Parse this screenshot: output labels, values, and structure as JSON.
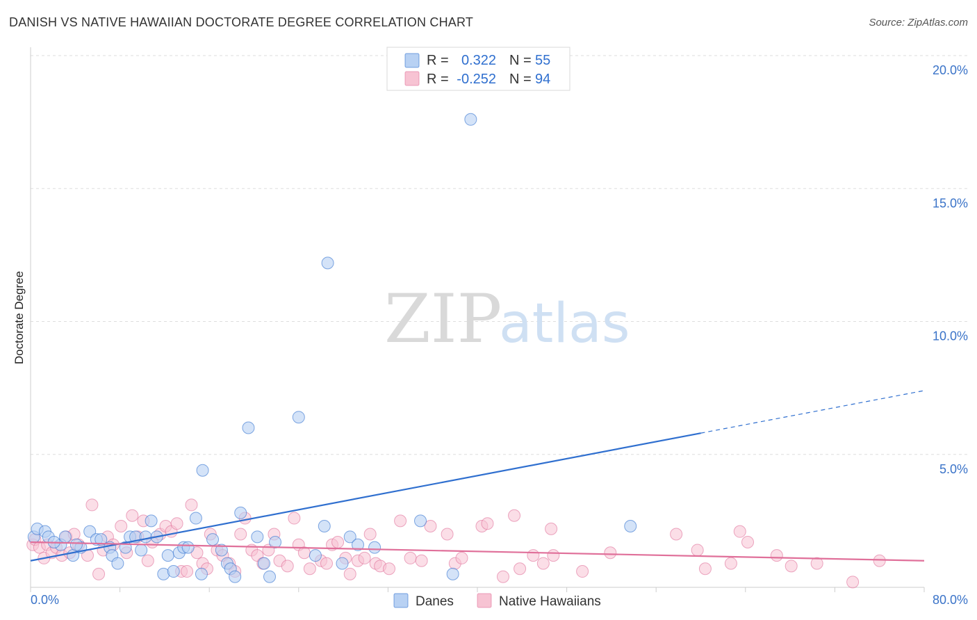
{
  "title": "DANISH VS NATIVE HAWAIIAN DOCTORATE DEGREE CORRELATION CHART",
  "source": "Source: ZipAtlas.com",
  "watermark": {
    "zip": "ZIP",
    "atlas": "atlas"
  },
  "colors": {
    "danes": "#2f6fcf",
    "danes_fill": "#b8d1f3",
    "hawaiians": "#e0709a",
    "hawaiians_fill": "#f7c3d3",
    "axis_text": "#3a73c8",
    "grid": "#dddddd"
  },
  "legend_top": {
    "danes": {
      "r_label": "R =",
      "r_value": "0.322",
      "n_label": "N =",
      "n_value": "55"
    },
    "hawaiians": {
      "r_label": "R =",
      "r_value": "-0.252",
      "n_label": "N =",
      "n_value": "94"
    }
  },
  "legend_bottom": {
    "danes": "Danes",
    "hawaiians": "Native Hawaiians"
  },
  "chart_data": {
    "type": "scatter",
    "title": "DANISH VS NATIVE HAWAIIAN DOCTORATE DEGREE CORRELATION CHART",
    "xlabel": "",
    "ylabel": "Doctorate Degree",
    "xlim": [
      0,
      80
    ],
    "ylim": [
      0,
      20.5
    ],
    "x_ticks": [
      "0.0%",
      "80.0%"
    ],
    "y_ticks": [
      {
        "value": 5,
        "label": "5.0%"
      },
      {
        "value": 10,
        "label": "10.0%"
      },
      {
        "value": 15,
        "label": "15.0%"
      },
      {
        "value": 20,
        "label": "20.0%"
      }
    ],
    "grid": true,
    "legend_position": "top-center",
    "series": [
      {
        "name": "Danes",
        "color": "#2f6fcf",
        "trend": {
          "x": [
            0,
            60
          ],
          "y": [
            1.0,
            5.8
          ],
          "dashed_to": [
            80,
            7.4
          ]
        },
        "points": [
          [
            0.3,
            1.9
          ],
          [
            0.6,
            2.2
          ],
          [
            1.3,
            2.1
          ],
          [
            1.6,
            1.9
          ],
          [
            2.7,
            1.6
          ],
          [
            3.1,
            1.9
          ],
          [
            3.8,
            1.2
          ],
          [
            4.5,
            1.5
          ],
          [
            5.3,
            2.1
          ],
          [
            5.9,
            1.8
          ],
          [
            6.3,
            1.8
          ],
          [
            7.1,
            1.5
          ],
          [
            7.3,
            1.2
          ],
          [
            7.8,
            0.9
          ],
          [
            8.5,
            1.5
          ],
          [
            8.9,
            1.9
          ],
          [
            9.4,
            1.9
          ],
          [
            9.9,
            1.4
          ],
          [
            10.3,
            1.9
          ],
          [
            10.8,
            2.5
          ],
          [
            11.3,
            1.9
          ],
          [
            11.9,
            0.5
          ],
          [
            12.3,
            1.2
          ],
          [
            12.8,
            0.6
          ],
          [
            13.3,
            1.3
          ],
          [
            13.7,
            1.5
          ],
          [
            14.1,
            1.5
          ],
          [
            14.8,
            2.6
          ],
          [
            15.3,
            0.5
          ],
          [
            15.4,
            4.4
          ],
          [
            16.3,
            1.8
          ],
          [
            17.1,
            1.4
          ],
          [
            17.6,
            0.9
          ],
          [
            17.9,
            0.7
          ],
          [
            18.3,
            0.4
          ],
          [
            18.8,
            2.8
          ],
          [
            19.5,
            6.0
          ],
          [
            20.3,
            1.9
          ],
          [
            20.9,
            0.9
          ],
          [
            21.4,
            0.4
          ],
          [
            21.9,
            1.7
          ],
          [
            24.0,
            6.4
          ],
          [
            25.5,
            1.2
          ],
          [
            26.6,
            12.2
          ],
          [
            26.3,
            2.3
          ],
          [
            27.9,
            0.9
          ],
          [
            28.6,
            1.9
          ],
          [
            29.3,
            1.6
          ],
          [
            30.8,
            1.5
          ],
          [
            34.9,
            2.5
          ],
          [
            37.8,
            0.5
          ],
          [
            39.4,
            17.6
          ],
          [
            53.7,
            2.3
          ],
          [
            2.1,
            1.7
          ],
          [
            4.1,
            1.6
          ]
        ]
      },
      {
        "name": "Native Hawaiians",
        "color": "#e0709a",
        "trend": {
          "x": [
            0,
            80
          ],
          "y": [
            1.7,
            1.0
          ]
        },
        "points": [
          [
            0.2,
            1.6
          ],
          [
            0.4,
            1.8
          ],
          [
            0.8,
            1.5
          ],
          [
            1.2,
            1.1
          ],
          [
            1.5,
            1.6
          ],
          [
            1.9,
            1.3
          ],
          [
            2.3,
            1.5
          ],
          [
            2.8,
            1.2
          ],
          [
            3.2,
            1.9
          ],
          [
            3.5,
            1.3
          ],
          [
            3.9,
            2.0
          ],
          [
            4.3,
            1.6
          ],
          [
            5.1,
            1.2
          ],
          [
            5.5,
            3.1
          ],
          [
            6.1,
            0.5
          ],
          [
            6.5,
            1.4
          ],
          [
            6.9,
            1.9
          ],
          [
            7.4,
            1.6
          ],
          [
            8.1,
            2.3
          ],
          [
            8.6,
            1.3
          ],
          [
            9.1,
            2.7
          ],
          [
            9.6,
            1.9
          ],
          [
            10.1,
            2.5
          ],
          [
            10.5,
            1.0
          ],
          [
            10.9,
            1.7
          ],
          [
            11.6,
            2.0
          ],
          [
            12.1,
            2.3
          ],
          [
            12.6,
            2.1
          ],
          [
            13.1,
            2.4
          ],
          [
            13.5,
            0.6
          ],
          [
            14.0,
            0.6
          ],
          [
            14.4,
            3.1
          ],
          [
            14.9,
            1.3
          ],
          [
            15.4,
            0.9
          ],
          [
            15.8,
            0.7
          ],
          [
            16.1,
            2.0
          ],
          [
            16.7,
            1.4
          ],
          [
            17.2,
            1.2
          ],
          [
            17.8,
            0.9
          ],
          [
            18.3,
            0.6
          ],
          [
            18.8,
            2.0
          ],
          [
            19.2,
            2.6
          ],
          [
            19.8,
            1.4
          ],
          [
            20.3,
            1.2
          ],
          [
            20.8,
            0.9
          ],
          [
            21.3,
            1.4
          ],
          [
            21.8,
            2.0
          ],
          [
            22.3,
            1.0
          ],
          [
            23.0,
            0.8
          ],
          [
            23.6,
            2.6
          ],
          [
            24.0,
            1.6
          ],
          [
            24.5,
            1.3
          ],
          [
            25.0,
            0.7
          ],
          [
            26.0,
            1.0
          ],
          [
            26.5,
            0.9
          ],
          [
            27.0,
            1.6
          ],
          [
            27.5,
            1.7
          ],
          [
            28.2,
            1.1
          ],
          [
            28.6,
            0.5
          ],
          [
            29.3,
            1.0
          ],
          [
            29.9,
            1.1
          ],
          [
            30.4,
            2.0
          ],
          [
            30.9,
            0.9
          ],
          [
            31.3,
            0.8
          ],
          [
            32.1,
            0.7
          ],
          [
            33.1,
            2.5
          ],
          [
            34.0,
            1.1
          ],
          [
            35.0,
            1.0
          ],
          [
            35.8,
            2.3
          ],
          [
            37.3,
            2.0
          ],
          [
            38.0,
            0.9
          ],
          [
            38.6,
            1.1
          ],
          [
            40.4,
            2.3
          ],
          [
            40.9,
            2.4
          ],
          [
            42.3,
            0.4
          ],
          [
            43.3,
            2.7
          ],
          [
            43.8,
            0.7
          ],
          [
            45.0,
            1.2
          ],
          [
            45.9,
            0.9
          ],
          [
            46.6,
            2.2
          ],
          [
            46.8,
            1.2
          ],
          [
            49.4,
            0.6
          ],
          [
            51.9,
            1.3
          ],
          [
            57.8,
            2.0
          ],
          [
            59.7,
            1.4
          ],
          [
            60.4,
            0.7
          ],
          [
            62.7,
            0.9
          ],
          [
            63.5,
            2.1
          ],
          [
            64.2,
            1.7
          ],
          [
            66.8,
            1.2
          ],
          [
            68.1,
            0.8
          ],
          [
            70.4,
            0.9
          ],
          [
            73.6,
            0.2
          ],
          [
            76.0,
            1.0
          ]
        ]
      }
    ]
  }
}
